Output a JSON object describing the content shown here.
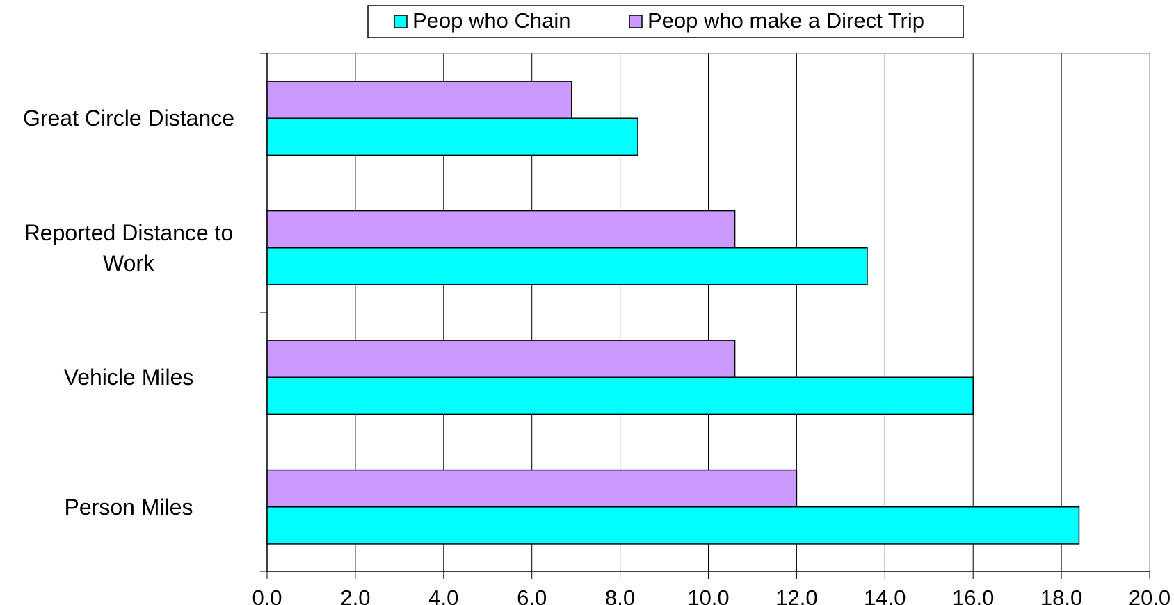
{
  "chart_data": {
    "type": "bar",
    "orientation": "horizontal",
    "categories": [
      "Great Circle Distance",
      "Reported Distance to Work",
      "Vehicle Miles",
      "Person Miles"
    ],
    "series": [
      {
        "name": "Peop who Chain",
        "color": "#00ffff",
        "values": [
          8.4,
          13.6,
          16.0,
          18.4
        ]
      },
      {
        "name": "Peop who make a Direct Trip",
        "color": "#cc99ff",
        "values": [
          6.9,
          10.6,
          10.6,
          12.0
        ]
      }
    ],
    "xlim": [
      0,
      20
    ],
    "xticks": [
      {
        "value": 0,
        "label": "0.0"
      },
      {
        "value": 2,
        "label": "2.0"
      },
      {
        "value": 4,
        "label": "4.0"
      },
      {
        "value": 6,
        "label": "6.0"
      },
      {
        "value": 8,
        "label": "8.0"
      },
      {
        "value": 10,
        "label": "10.0"
      },
      {
        "value": 12,
        "label": "12.0"
      },
      {
        "value": 14,
        "label": "14.0"
      },
      {
        "value": 16,
        "label": "16.0"
      },
      {
        "value": 18,
        "label": "18.0"
      },
      {
        "value": 20,
        "label": "20.0"
      }
    ],
    "grid": true,
    "legend": "top"
  }
}
